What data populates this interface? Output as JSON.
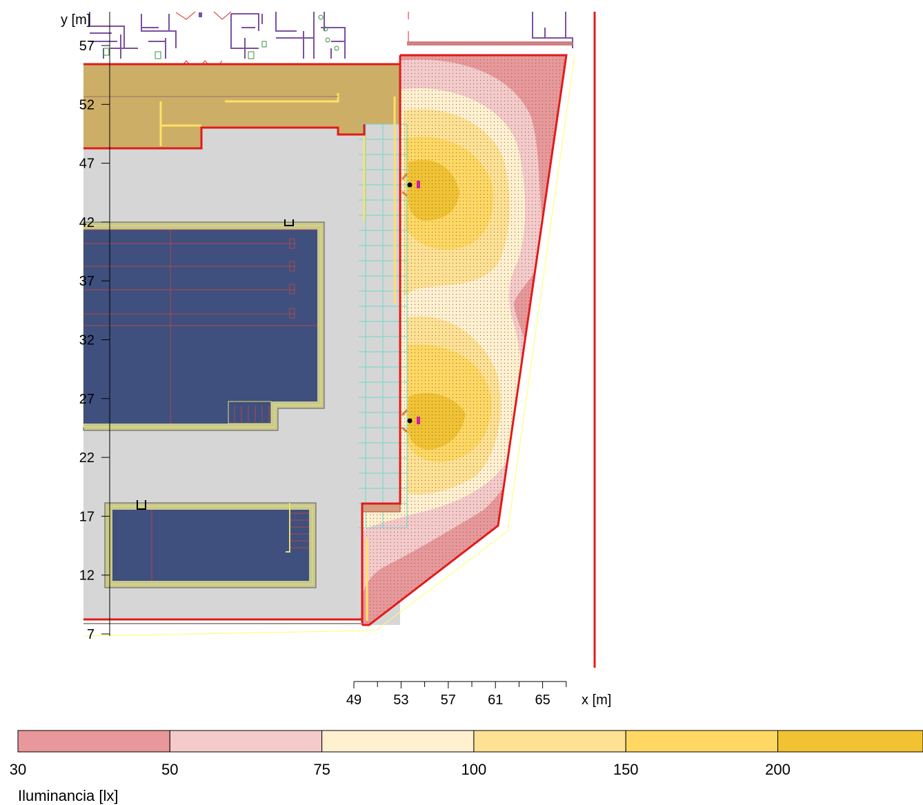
{
  "axes": {
    "y_label": "y [m]",
    "x_label": "x [m]",
    "y_ticks": [
      "57",
      "52",
      "47",
      "42",
      "37",
      "32",
      "27",
      "22",
      "17",
      "12",
      "7"
    ],
    "x_ticks": [
      "49",
      "53",
      "57",
      "61",
      "65"
    ]
  },
  "legend": {
    "title": "Iluminancia [lx]",
    "values": [
      "30",
      "50",
      "75",
      "100",
      "150",
      "200"
    ],
    "colors": [
      "#e8989a",
      "#f4cacb",
      "#fff0d0",
      "#ffe194",
      "#ffd863",
      "#f1c232"
    ]
  },
  "colors": {
    "pool": "#3f4f7e",
    "deck": "#d6d6d6",
    "terrace": "#ccae66",
    "boundary": "#e01b1b",
    "grid": "#6fd8c8"
  }
}
